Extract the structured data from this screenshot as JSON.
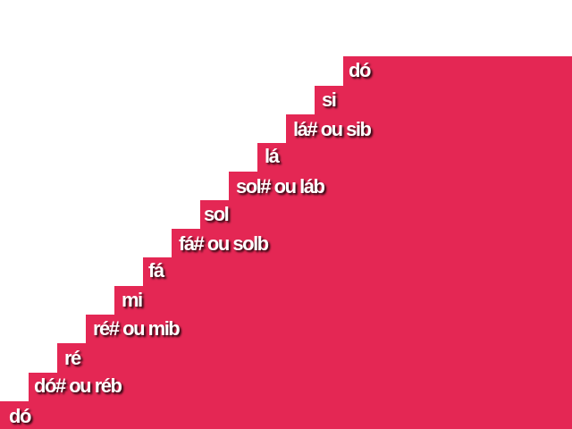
{
  "colors": {
    "step": "#e42754",
    "text": "#ffffff",
    "background": "#ffffff"
  },
  "notes": [
    "dó",
    "dó# ou réb",
    "ré",
    "ré# ou mib",
    "mi",
    "fá",
    "fá# ou solb",
    "sol",
    "sol# ou láb",
    "lá",
    "lá# ou sib",
    "si",
    "dó"
  ]
}
